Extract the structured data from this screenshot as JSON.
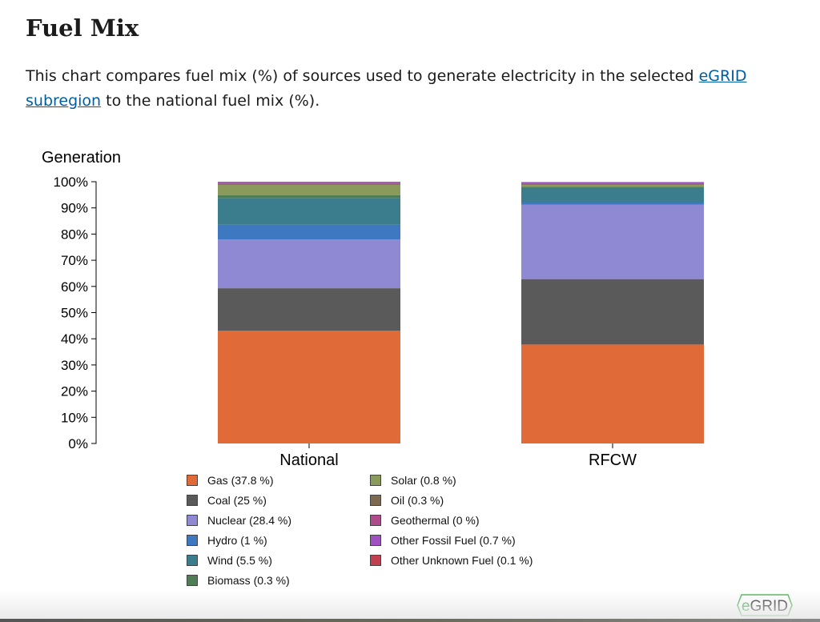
{
  "title": "Fuel Mix",
  "description": {
    "before": "This chart compares fuel mix (%) of sources used to generate electricity in the selected ",
    "link": "eGRID subregion",
    "after": " to the national fuel mix (%)."
  },
  "logo": "eGRID",
  "chart_data": {
    "type": "bar",
    "stacked": true,
    "ylabel": "Generation",
    "ylim": [
      0,
      100
    ],
    "yticks": [
      "0%",
      "10%",
      "20%",
      "30%",
      "40%",
      "50%",
      "60%",
      "70%",
      "80%",
      "90%",
      "100%"
    ],
    "categories": [
      "National",
      "RFCW"
    ],
    "series": [
      {
        "name": "Gas",
        "color": "#e06a38",
        "values": [
          43.1,
          37.8
        ]
      },
      {
        "name": "Coal",
        "color": "#5a5a5a",
        "values": [
          16.2,
          25
        ]
      },
      {
        "name": "Nuclear",
        "color": "#8f88d2",
        "values": [
          18.6,
          28.4
        ]
      },
      {
        "name": "Hydro",
        "color": "#3d78c0",
        "values": [
          5.7,
          1
        ]
      },
      {
        "name": "Wind",
        "color": "#3b7d8c",
        "values": [
          10.2,
          5.5
        ]
      },
      {
        "name": "Biomass",
        "color": "#4e7d56",
        "values": [
          1.1,
          0.3
        ]
      },
      {
        "name": "Solar",
        "color": "#8a9a5a",
        "values": [
          3.9,
          0.8
        ]
      },
      {
        "name": "Oil",
        "color": "#7d6a50",
        "values": [
          0.3,
          0.3
        ]
      },
      {
        "name": "Geothermal",
        "color": "#b04b8a",
        "values": [
          0.4,
          0
        ]
      },
      {
        "name": "Other Fossil Fuel",
        "color": "#a050c0",
        "values": [
          0.3,
          0.7
        ]
      },
      {
        "name": "Other Unknown Fuel",
        "color": "#c04050",
        "values": [
          0.2,
          0.1
        ]
      }
    ],
    "legend": [
      "Gas (37.8 %)",
      "Coal (25 %)",
      "Nuclear (28.4 %)",
      "Hydro (1 %)",
      "Wind (5.5 %)",
      "Biomass (0.3 %)",
      "Solar (0.8 %)",
      "Oil (0.3 %)",
      "Geothermal (0 %)",
      "Other Fossil Fuel (0.7 %)",
      "Other Unknown Fuel (0.1 %)"
    ],
    "legend_placement": "bottom",
    "grid": false
  }
}
